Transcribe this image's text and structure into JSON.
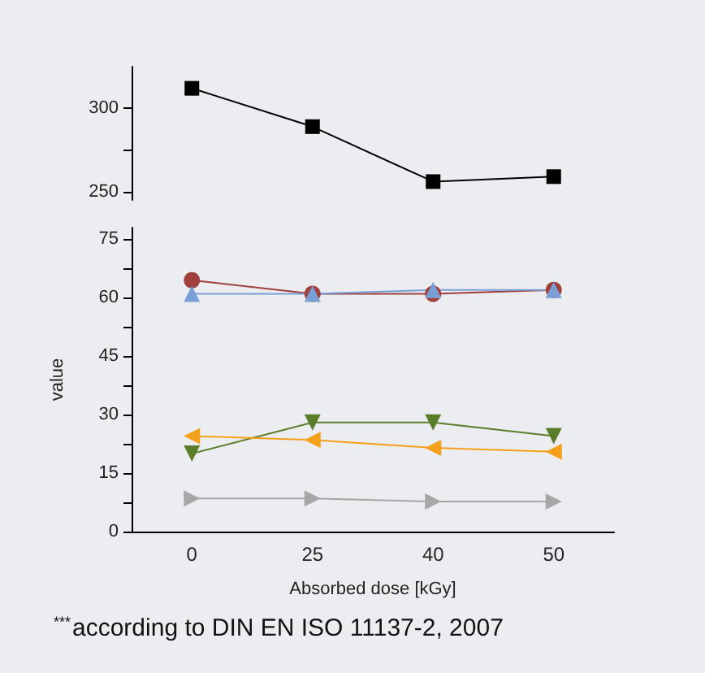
{
  "chart_data": [
    {
      "type": "line",
      "categories": [
        "0",
        "25",
        "40",
        "50"
      ],
      "ylim": [
        245,
        325
      ],
      "yticks": [
        250,
        {
          "value": 275,
          "label": null
        },
        300
      ],
      "tick_labels": "y",
      "series": [
        {
          "color": "#000000",
          "marker": "square",
          "values": [
            312,
            289,
            256,
            259
          ]
        }
      ]
    },
    {
      "type": "line",
      "categories": [
        "0",
        "25",
        "40",
        "50"
      ],
      "ylim": [
        0,
        78
      ],
      "yticks": [
        0,
        {
          "value": 7.5,
          "label": null
        },
        15,
        {
          "value": 22.5,
          "label": null
        },
        30,
        {
          "value": 37.5,
          "label": null
        },
        45,
        {
          "value": 52.5,
          "label": null
        },
        60,
        {
          "value": 67.5,
          "label": null
        },
        75
      ],
      "xlabel": "Absorbed dose [kGy]",
      "ylabel": "value",
      "annotations": [
        "$^{***}$according to DIN EN ISO 11137-2, 2007"
      ],
      "series": [
        {
          "color": "#a0403c",
          "marker": "circle",
          "values": [
            64.5,
            61,
            61,
            62
          ]
        },
        {
          "color": "#7a9fd6",
          "marker": "triangle",
          "values": [
            61,
            61,
            62,
            62
          ]
        },
        {
          "color": "#5a7d2a",
          "marker": "triangle-down",
          "values": [
            20,
            28,
            28,
            24.5
          ]
        },
        {
          "color": "#f5a01a",
          "marker": "triangle-left",
          "values": [
            24.5,
            23.5,
            21.5,
            20.5
          ]
        },
        {
          "color": "#a6a6a6",
          "marker": "triangle-right",
          "values": [
            8.5,
            8.5,
            7.7,
            7.7
          ]
        }
      ]
    }
  ]
}
